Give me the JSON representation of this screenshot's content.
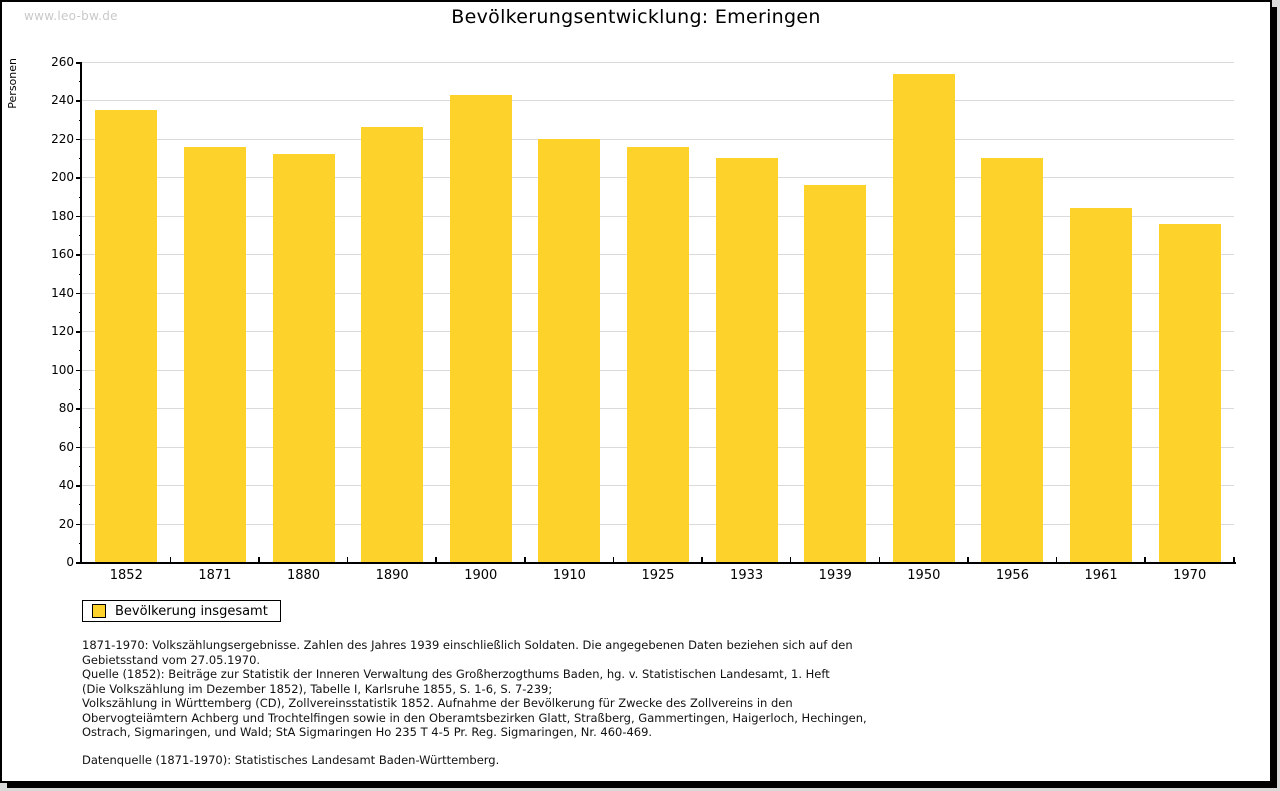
{
  "watermark": {
    "text": "www.leo-bw.de"
  },
  "chart": {
    "title": "Bevölkerungsentwicklung: Emeringen",
    "ylabel": "Personen",
    "legend_label": "Bevölkerung insgesamt",
    "bar_color": "#FDD32B",
    "grid_color": "#DADADA",
    "axis_color": "#000000"
  },
  "chart_data": {
    "type": "bar",
    "title": "Bevölkerungsentwicklung: Emeringen",
    "xlabel": "",
    "ylabel": "Personen",
    "categories": [
      "1852",
      "1871",
      "1880",
      "1890",
      "1900",
      "1910",
      "1925",
      "1933",
      "1939",
      "1950",
      "1956",
      "1961",
      "1970"
    ],
    "values": [
      235,
      216,
      212,
      226,
      243,
      220,
      216,
      210,
      196,
      254,
      210,
      184,
      176
    ],
    "series_name": "Bevölkerung insgesamt",
    "ylim": [
      0,
      260
    ],
    "ytick_step": 20,
    "ytick_minor_step": 10,
    "grid": true,
    "legend": [
      "Bevölkerung insgesamt"
    ],
    "legend_position": "bottom-left"
  },
  "notes": {
    "lines": [
      "1871-1970: Volkszählungsergebnisse. Zahlen des Jahres 1939 einschließlich Soldaten. Die angegebenen Daten beziehen sich auf den",
      "Gebietsstand vom 27.05.1970.",
      "Quelle (1852): Beiträge zur Statistik der Inneren Verwaltung des Großherzogthums Baden, hg. v. Statistischen Landesamt, 1. Heft",
      "(Die Volkszählung im Dezember 1852), Tabelle I, Karlsruhe 1855, S. 1-6, S. 7-239;",
      "Volkszählung in Württemberg (CD), Zollvereinsstatistik 1852. Aufnahme der Bevölkerung für Zwecke des Zollvereins in den",
      "Obervogteiämtern Achberg und Trochtelfingen sowie in den Oberamtsbezirken Glatt, Straßberg, Gammertingen, Haigerloch, Hechingen,",
      "Ostrach, Sigmaringen, und Wald; StA Sigmaringen Ho 235 T 4-5 Pr. Reg. Sigmaringen, Nr. 460-469."
    ],
    "datasource": "Datenquelle (1871-1970): Statistisches Landesamt Baden-Württemberg."
  }
}
